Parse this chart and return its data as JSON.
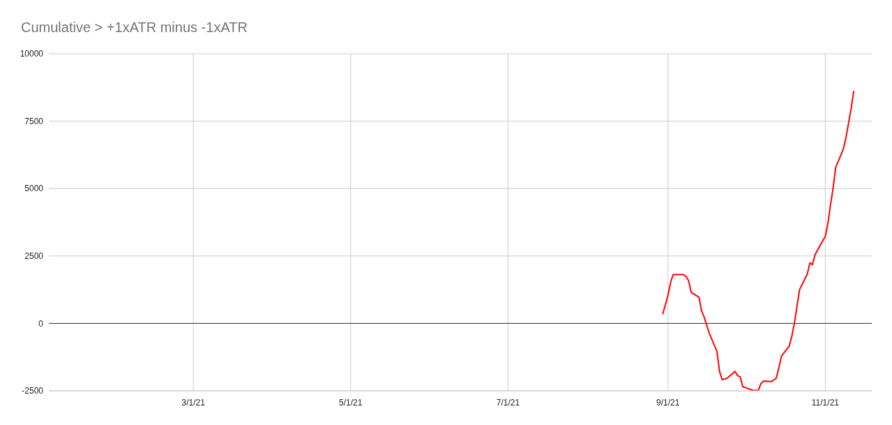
{
  "chart_data": {
    "type": "line",
    "title": "Cumulative > +1xATR minus -1xATR",
    "x": [
      "2021-08-30",
      "2021-08-31",
      "2021-09-01",
      "2021-09-02",
      "2021-09-03",
      "2021-09-07",
      "2021-09-08",
      "2021-09-09",
      "2021-09-10",
      "2021-09-13",
      "2021-09-14",
      "2021-09-15",
      "2021-09-16",
      "2021-09-17",
      "2021-09-20",
      "2021-09-21",
      "2021-09-22",
      "2021-09-23",
      "2021-09-24",
      "2021-09-27",
      "2021-09-28",
      "2021-09-29",
      "2021-09-30",
      "2021-10-01",
      "2021-10-04",
      "2021-10-05",
      "2021-10-06",
      "2021-10-07",
      "2021-10-08",
      "2021-10-11",
      "2021-10-12",
      "2021-10-13",
      "2021-10-14",
      "2021-10-15",
      "2021-10-18",
      "2021-10-19",
      "2021-10-20",
      "2021-10-21",
      "2021-10-22",
      "2021-10-25",
      "2021-10-26",
      "2021-10-27",
      "2021-10-28",
      "2021-10-29",
      "2021-11-01",
      "2021-11-02",
      "2021-11-03",
      "2021-11-04",
      "2021-11-05",
      "2021-11-08",
      "2021-11-09",
      "2021-11-10",
      "2021-11-11",
      "2021-11-12"
    ],
    "series": [
      {
        "color": "#ff0000",
        "values": [
          360,
          690,
          1040,
          1510,
          1810,
          1810,
          1740,
          1580,
          1150,
          970,
          470,
          240,
          -60,
          -360,
          -1040,
          -1790,
          -2090,
          -2060,
          -2030,
          -1780,
          -1940,
          -1980,
          -2350,
          -2380,
          -2480,
          -2490,
          -2490,
          -2240,
          -2140,
          -2160,
          -2100,
          -2030,
          -1640,
          -1210,
          -840,
          -480,
          0,
          630,
          1250,
          1830,
          2240,
          2180,
          2540,
          2720,
          3230,
          3710,
          4400,
          5010,
          5780,
          6470,
          6890,
          7430,
          7970,
          8600
        ]
      }
    ],
    "xlim": [
      "2021-01-04",
      "2021-11-19"
    ],
    "xticks": [
      {
        "value": "2021-03-01",
        "label": "3/1/21"
      },
      {
        "value": "2021-05-01",
        "label": "5/1/21"
      },
      {
        "value": "2021-07-01",
        "label": "7/1/21"
      },
      {
        "value": "2021-09-01",
        "label": "9/1/21"
      },
      {
        "value": "2021-11-01",
        "label": "11/1/21"
      }
    ],
    "ylim": [
      -2500,
      10000
    ],
    "yticks": [
      -2500,
      0,
      2500,
      5000,
      7500,
      10000
    ],
    "ref_lines": [
      {
        "axis": "y",
        "value": 0,
        "color": "#333333"
      }
    ],
    "grid": true
  }
}
